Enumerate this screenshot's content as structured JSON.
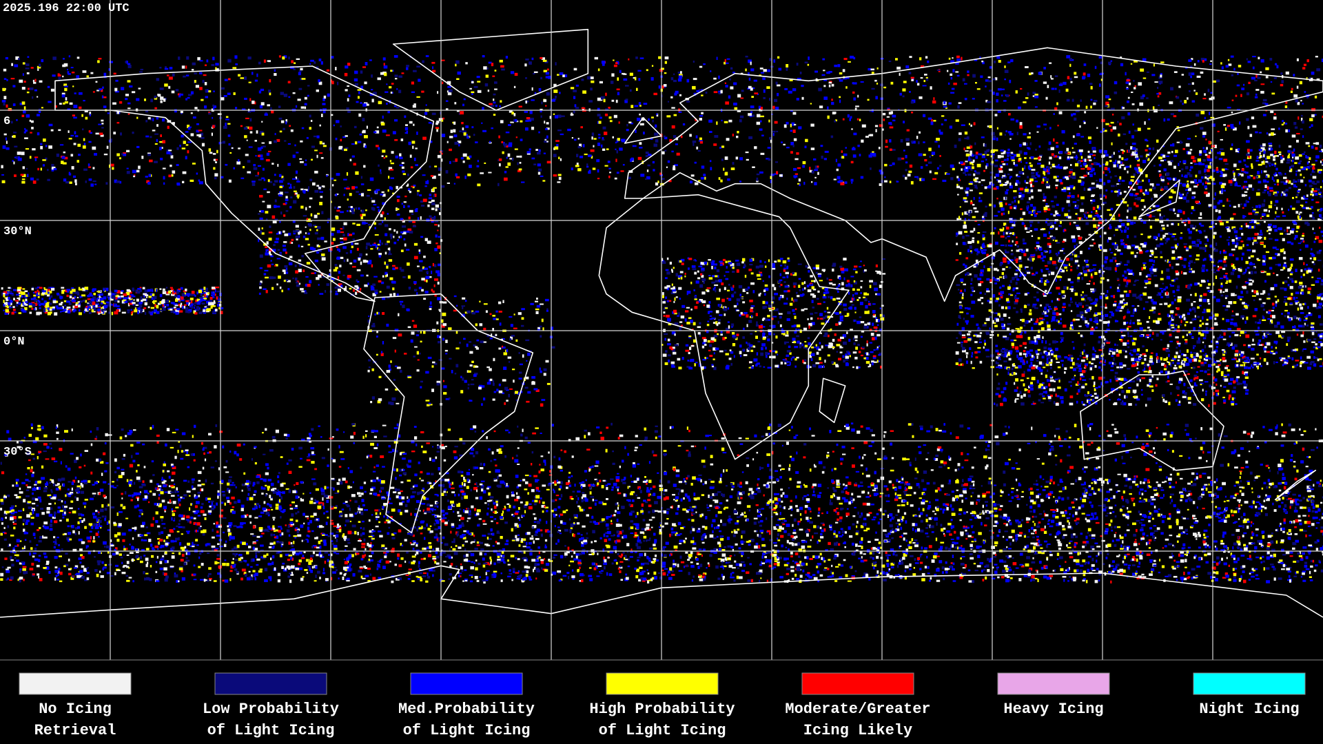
{
  "timestamp": "2025.196 22:00 UTC",
  "lat_labels": [
    "6",
    "30°N",
    "0°N",
    "30°S"
  ],
  "legend": [
    {
      "label": [
        "No Icing",
        "Retrieval"
      ],
      "color": "#f2f2f2"
    },
    {
      "label": [
        "Low Probability",
        "of Light Icing"
      ],
      "color": "#0a0a7a"
    },
    {
      "label": [
        "Med.Probability",
        "of Light Icing"
      ],
      "color": "#0000ff"
    },
    {
      "label": [
        "High Probability",
        "of Light Icing"
      ],
      "color": "#ffff00"
    },
    {
      "label": [
        "Moderate/Greater",
        "Icing Likely"
      ],
      "color": "#ff0000"
    },
    {
      "label": [
        "Heavy Icing"
      ],
      "color": "#e8a6e8"
    },
    {
      "label": [
        "Night Icing"
      ],
      "color": "#00ffff"
    }
  ]
}
